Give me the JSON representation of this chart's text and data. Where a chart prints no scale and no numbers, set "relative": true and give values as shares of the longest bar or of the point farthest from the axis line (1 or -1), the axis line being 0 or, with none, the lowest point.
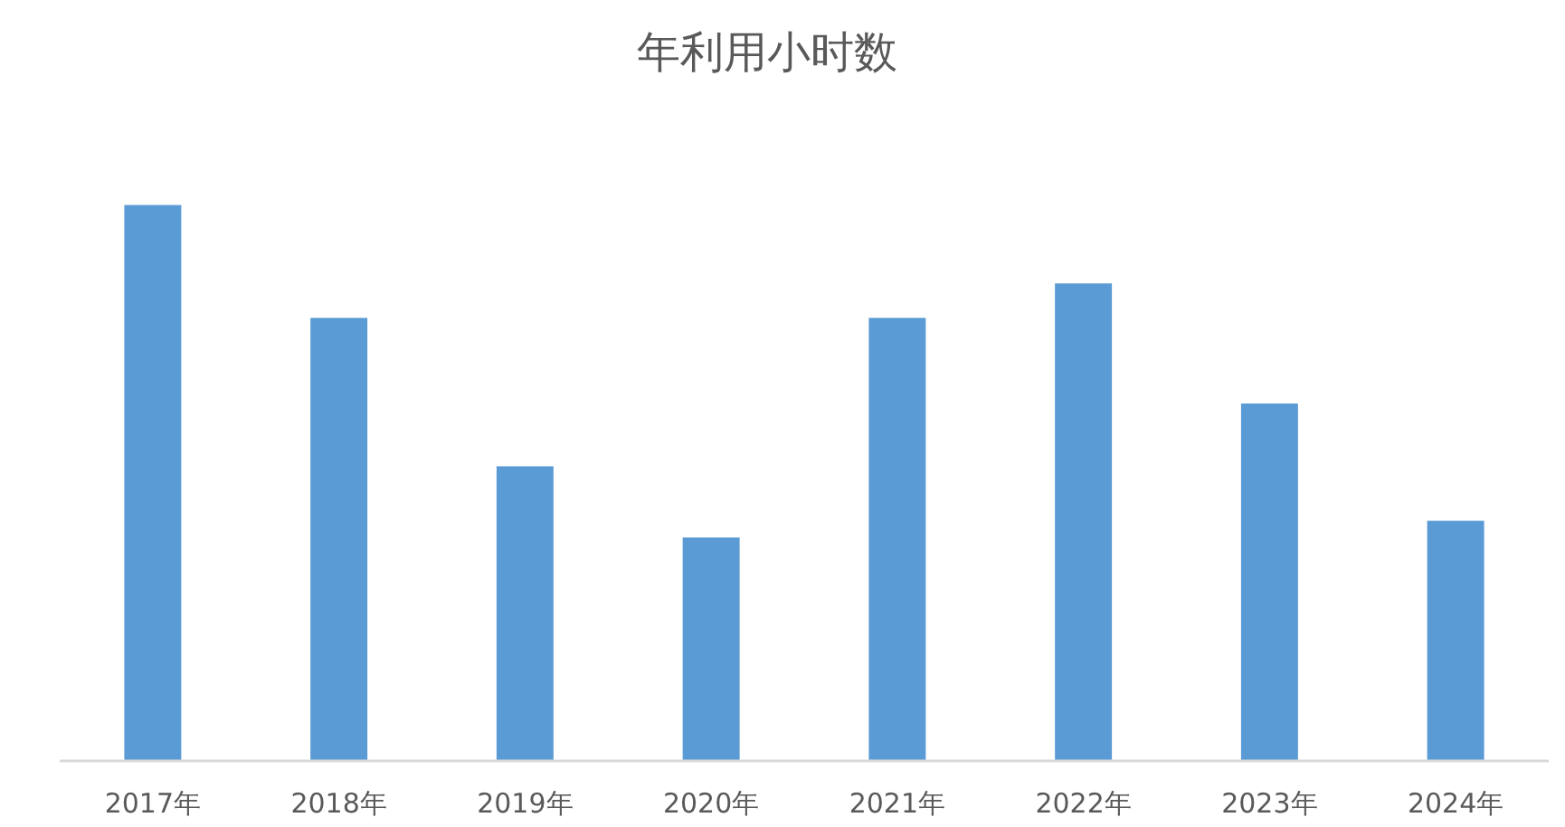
{
  "chart_data": {
    "type": "bar",
    "title": "年利用小时数",
    "relative": true,
    "categories": [
      "2017年",
      "2018年",
      "2019年",
      "2020年",
      "2021年",
      "2022年",
      "2023年",
      "2024年"
    ],
    "values": [
      1,
      0.797,
      0.53,
      0.402,
      0.797,
      0.859,
      0.643,
      0.432
    ],
    "color": "#5b9bd5"
  }
}
